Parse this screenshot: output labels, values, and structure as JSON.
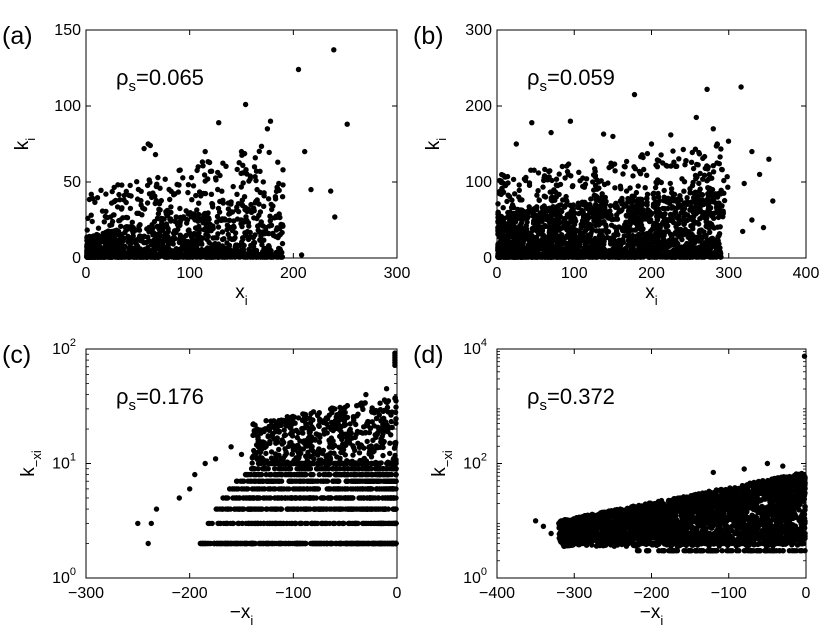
{
  "chart_data": [
    {
      "type": "scatter",
      "panel_label": "(a)",
      "annotation": {
        "symbol": "ρ",
        "sub": "s",
        "text": "=0.065"
      },
      "xlabel": {
        "main": "x",
        "sub": "i"
      },
      "ylabel": {
        "main": "k",
        "sub": "i"
      },
      "xlim": [
        0,
        300
      ],
      "ylim": [
        0,
        150
      ],
      "xticks": [
        "0",
        "100",
        "200",
        "300"
      ],
      "yticks": [
        "0",
        "50",
        "100",
        "150"
      ],
      "yscale": "linear",
      "outliers": [
        [
          239,
          137
        ],
        [
          205,
          124
        ],
        [
          154,
          101
        ],
        [
          252,
          88
        ],
        [
          178,
          90
        ],
        [
          128,
          89
        ],
        [
          211,
          70
        ],
        [
          175,
          85
        ],
        [
          150,
          70
        ],
        [
          186,
          49
        ],
        [
          236,
          44
        ],
        [
          240,
          27
        ],
        [
          208,
          2
        ],
        [
          217,
          45
        ],
        [
          185,
          63
        ],
        [
          115,
          70
        ],
        [
          62,
          74
        ],
        [
          56,
          72
        ],
        [
          67,
          68
        ],
        [
          60,
          75
        ],
        [
          190,
          58
        ],
        [
          165,
          45
        ],
        [
          142,
          47
        ],
        [
          120,
          57
        ]
      ]
    },
    {
      "type": "scatter",
      "panel_label": "(b)",
      "annotation": {
        "symbol": "ρ",
        "sub": "s",
        "text": "=0.059"
      },
      "xlabel": {
        "main": "x",
        "sub": "i"
      },
      "ylabel": {
        "main": "k",
        "sub": "i"
      },
      "xlim": [
        0,
        400
      ],
      "ylim": [
        0,
        300
      ],
      "xticks": [
        "0",
        "100",
        "200",
        "300",
        "400"
      ],
      "yticks": [
        "0",
        "100",
        "200",
        "300"
      ],
      "yscale": "linear",
      "outliers": [
        [
          316,
          225
        ],
        [
          272,
          222
        ],
        [
          178,
          215
        ],
        [
          258,
          185
        ],
        [
          95,
          180
        ],
        [
          280,
          170
        ],
        [
          150,
          160
        ],
        [
          45,
          178
        ],
        [
          225,
          162
        ],
        [
          330,
          140
        ],
        [
          352,
          130
        ],
        [
          357,
          75
        ],
        [
          285,
          150
        ],
        [
          262,
          137
        ],
        [
          200,
          150
        ],
        [
          340,
          110
        ],
        [
          320,
          98
        ],
        [
          298,
          107
        ],
        [
          138,
          163
        ],
        [
          70,
          165
        ],
        [
          25,
          150
        ],
        [
          330,
          50
        ],
        [
          345,
          40
        ],
        [
          318,
          35
        ]
      ]
    },
    {
      "type": "scatter",
      "panel_label": "(c)",
      "annotation": {
        "symbol": "ρ",
        "sub": "s",
        "text": "=0.176"
      },
      "xlabel": {
        "main": "−x",
        "sub": "i"
      },
      "ylabel": {
        "main": "k",
        "sub": "−xi"
      },
      "xlim": [
        -300,
        0
      ],
      "ylim": [
        1,
        100
      ],
      "xticks": [
        "−300",
        "−200",
        "−100",
        "0"
      ],
      "yticks": [
        {
          "base": "10",
          "exp": "0"
        },
        {
          "base": "10",
          "exp": "1"
        },
        {
          "base": "10",
          "exp": "2"
        }
      ],
      "yscale": "log",
      "outliers": [
        [
          -250,
          3
        ],
        [
          -240,
          2
        ],
        [
          -237,
          3
        ],
        [
          -232,
          4
        ],
        [
          -210,
          5
        ],
        [
          -200,
          6
        ],
        [
          -195,
          8
        ],
        [
          -185,
          10
        ],
        [
          -175,
          11
        ],
        [
          -160,
          14
        ],
        [
          -150,
          12
        ],
        [
          -120,
          18
        ],
        [
          -95,
          25
        ],
        [
          -60,
          30
        ],
        [
          -30,
          40
        ],
        [
          -10,
          45
        ],
        [
          -2,
          92
        ],
        [
          -2,
          88
        ],
        [
          -2,
          84
        ],
        [
          -2,
          80
        ],
        [
          -2,
          76
        ],
        [
          -2,
          72
        ]
      ]
    },
    {
      "type": "scatter",
      "panel_label": "(d)",
      "annotation": {
        "symbol": "ρ",
        "sub": "s",
        "text": "=0.372"
      },
      "xlabel": {
        "main": "−x",
        "sub": "i"
      },
      "ylabel": {
        "main": "k",
        "sub": "−xi"
      },
      "xlim": [
        -400,
        0
      ],
      "ylim": [
        1,
        10000
      ],
      "xticks": [
        "−400",
        "−300",
        "−200",
        "−100",
        "0"
      ],
      "yticks": [
        {
          "base": "10",
          "exp": "0"
        },
        {
          "base": "10",
          "exp": "2"
        },
        {
          "base": "10",
          "exp": "4"
        }
      ],
      "yscale": "log",
      "outliers": [
        [
          -2,
          7500
        ],
        [
          -350,
          10
        ],
        [
          -340,
          8
        ],
        [
          -330,
          6
        ],
        [
          -320,
          9
        ],
        [
          -310,
          5
        ],
        [
          -300,
          7
        ],
        [
          -290,
          4
        ],
        [
          -280,
          12
        ],
        [
          -50,
          100
        ],
        [
          -30,
          90
        ],
        [
          -80,
          80
        ],
        [
          -120,
          70
        ]
      ]
    }
  ]
}
